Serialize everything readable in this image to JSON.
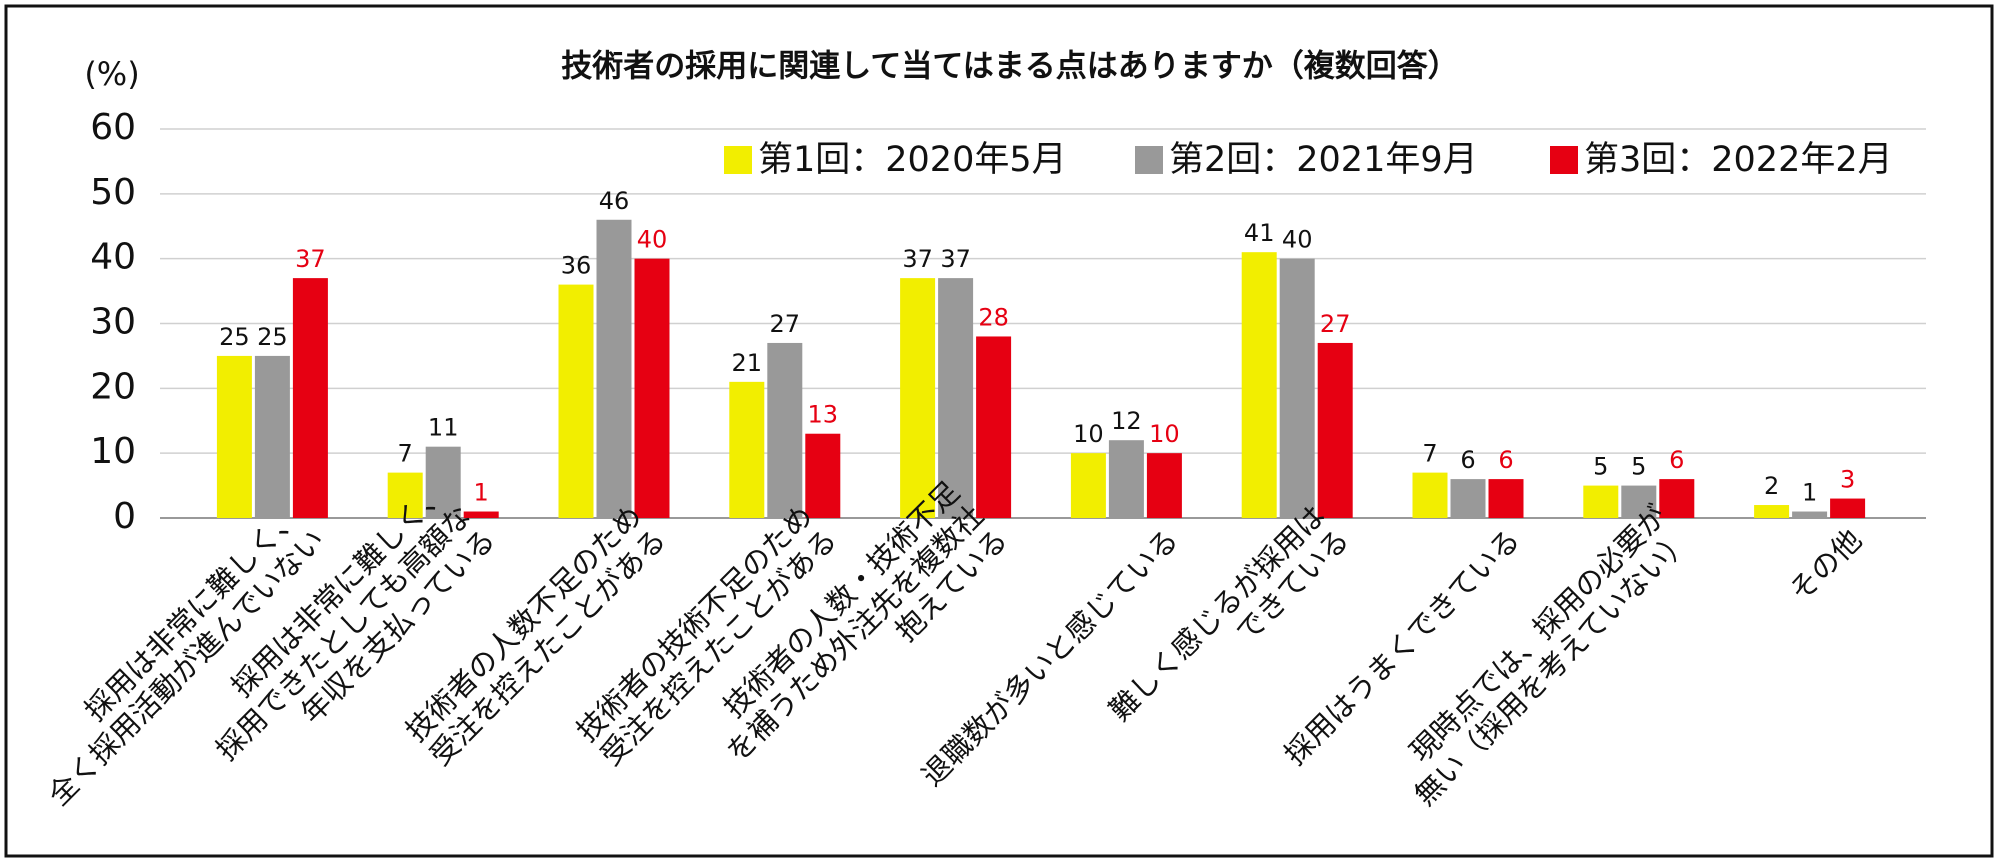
{
  "chart_data": {
    "type": "bar",
    "title": "技術者の採用に関連して当てはまる点はありますか（複数回答）",
    "y_label": "(%)",
    "categories": [
      [
        "採用は非常に難しく、",
        "全く採用活動が進んでいない"
      ],
      [
        "採用は非常に難しく、",
        "採用できたとしても高額な",
        "年収を支払っている"
      ],
      [
        "技術者の人数不足のため",
        "受注を控えたことがある"
      ],
      [
        "技術者の技術不足のため",
        "受注を控えたことがある"
      ],
      [
        "技術者の人数・技術不足",
        "を補うため外注先を複数社",
        "抱えている"
      ],
      [
        "退職数が多いと感じている"
      ],
      [
        "難しく感じるが採用は",
        "できている"
      ],
      [
        "採用はうまくできている"
      ],
      [
        "現時点では、採用の必要が",
        "無い（採用を考えていない）"
      ],
      [
        "その他"
      ]
    ],
    "series": [
      {
        "name": "第1回：2020年5月",
        "color": "#f2ee00",
        "label_color": "#111111",
        "values": [
          25,
          7,
          36,
          21,
          37,
          10,
          41,
          7,
          5,
          2
        ]
      },
      {
        "name": "第2回：2021年9月",
        "color": "#999999",
        "label_color": "#111111",
        "values": [
          25,
          11,
          46,
          27,
          37,
          12,
          40,
          6,
          5,
          1
        ]
      },
      {
        "name": "第3回：2022年2月",
        "color": "#e60012",
        "label_color": "#e60012",
        "values": [
          37,
          1,
          40,
          13,
          28,
          10,
          27,
          6,
          6,
          3
        ]
      }
    ],
    "ylim": [
      0,
      60
    ],
    "yticks": [
      0,
      10,
      20,
      30,
      40,
      50,
      60
    ],
    "grid": true,
    "legend": "top-right"
  }
}
